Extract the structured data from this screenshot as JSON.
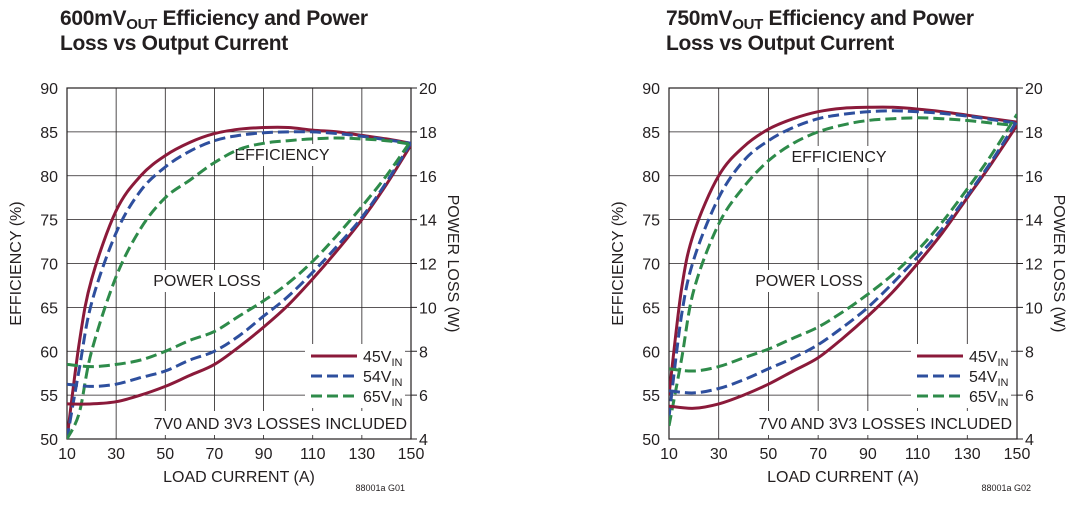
{
  "charts": [
    {
      "title_prefix": "600mV",
      "title_sub": "OUT",
      "title_suffix": " Efficiency and Power",
      "title_line2": "Loss vs Output Current",
      "figure_code": "88001a G01"
    },
    {
      "title_prefix": "750mV",
      "title_sub": "OUT",
      "title_suffix": " Efficiency and Power",
      "title_line2": "Loss vs Output Current",
      "figure_code": "88001a G02"
    }
  ],
  "colors": {
    "45V": "#8b1a3a",
    "54V": "#2e4f9e",
    "65V": "#2e8b4a",
    "axis": "#231f20"
  },
  "chart_data": [
    {
      "type": "line",
      "title": "600mVOUT Efficiency and Power Loss vs Output Current",
      "xlabel": "LOAD CURRENT (A)",
      "ylabel": "EFFICIENCY (%)",
      "y2label": "POWER LOSS (W)",
      "xlim": [
        10,
        150
      ],
      "ylim": [
        50,
        90
      ],
      "y2lim": [
        4,
        20
      ],
      "xticks": [
        10,
        30,
        50,
        70,
        90,
        110,
        130,
        150
      ],
      "yticks": [
        50,
        55,
        60,
        65,
        70,
        75,
        80,
        85,
        90
      ],
      "y2ticks": [
        4,
        6,
        8,
        10,
        12,
        14,
        16,
        18,
        20
      ],
      "grid": true,
      "legend": "bottom-right",
      "annotations": [
        "EFFICIENCY",
        "POWER LOSS",
        "7V0 AND 3V3 LOSSES INCLUDED"
      ],
      "series": [
        {
          "name": "45V",
          "sub": "IN",
          "axis": "efficiency",
          "style": "solid",
          "color_key": "45V",
          "x": [
            10,
            15,
            20,
            30,
            40,
            50,
            60,
            70,
            80,
            90,
            100,
            110,
            120,
            130,
            140,
            150
          ],
          "y": [
            50,
            61,
            68.2,
            76,
            80,
            82.3,
            83.8,
            84.8,
            85.3,
            85.5,
            85.5,
            85.2,
            85,
            84.6,
            84.2,
            83.7
          ]
        },
        {
          "name": "54V",
          "sub": "IN",
          "axis": "efficiency",
          "style": "dashed",
          "color_key": "54V",
          "x": [
            10,
            15,
            20,
            30,
            40,
            50,
            60,
            70,
            80,
            90,
            100,
            110,
            120,
            130,
            140,
            150
          ],
          "y": [
            50,
            58,
            65.5,
            73.5,
            78.3,
            81,
            82.8,
            84,
            84.6,
            84.9,
            85,
            85,
            84.8,
            84.5,
            84.1,
            83.7
          ]
        },
        {
          "name": "65V",
          "sub": "IN",
          "axis": "efficiency",
          "style": "dashed",
          "color_key": "65V",
          "x": [
            10,
            15,
            20,
            30,
            40,
            50,
            60,
            70,
            80,
            90,
            100,
            110,
            120,
            130,
            140,
            150
          ],
          "y": [
            50,
            53,
            60,
            68.5,
            74,
            77.5,
            79.5,
            81.5,
            83,
            83.7,
            84,
            84.2,
            84.3,
            84.2,
            84,
            83.6
          ]
        },
        {
          "name": "45V",
          "sub": "IN",
          "axis": "power_loss",
          "style": "solid",
          "color_key": "45V",
          "x": [
            10,
            20,
            30,
            40,
            50,
            60,
            70,
            80,
            90,
            100,
            110,
            120,
            130,
            140,
            150
          ],
          "y": [
            5.6,
            5.6,
            5.7,
            6.0,
            6.4,
            6.9,
            7.4,
            8.2,
            9.1,
            10.1,
            11.3,
            12.6,
            14.0,
            15.6,
            17.4
          ]
        },
        {
          "name": "54V",
          "sub": "IN",
          "axis": "power_loss",
          "style": "dashed",
          "color_key": "54V",
          "x": [
            10,
            20,
            30,
            40,
            50,
            60,
            70,
            80,
            90,
            100,
            110,
            120,
            130,
            140,
            150
          ],
          "y": [
            6.5,
            6.4,
            6.5,
            6.8,
            7.1,
            7.6,
            8.0,
            8.7,
            9.6,
            10.5,
            11.6,
            12.8,
            14.1,
            15.7,
            17.5
          ]
        },
        {
          "name": "65V",
          "sub": "IN",
          "axis": "power_loss",
          "style": "dashed",
          "color_key": "65V",
          "x": [
            10,
            20,
            30,
            40,
            50,
            60,
            70,
            80,
            90,
            100,
            110,
            120,
            130,
            140,
            150
          ],
          "y": [
            7.4,
            7.3,
            7.4,
            7.6,
            8.0,
            8.5,
            8.9,
            9.6,
            10.3,
            11.1,
            12.1,
            13.3,
            14.6,
            16.0,
            17.6
          ]
        }
      ]
    },
    {
      "type": "line",
      "title": "750mVOUT Efficiency and Power Loss vs Output Current",
      "xlabel": "LOAD CURRENT (A)",
      "ylabel": "EFFICIENCY (%)",
      "y2label": "POWER LOSS (W)",
      "xlim": [
        10,
        150
      ],
      "ylim": [
        50,
        90
      ],
      "y2lim": [
        4,
        20
      ],
      "xticks": [
        10,
        30,
        50,
        70,
        90,
        110,
        130,
        150
      ],
      "yticks": [
        50,
        55,
        60,
        65,
        70,
        75,
        80,
        85,
        90
      ],
      "y2ticks": [
        4,
        6,
        8,
        10,
        12,
        14,
        16,
        18,
        20
      ],
      "grid": true,
      "legend": "bottom-right",
      "annotations": [
        "EFFICIENCY",
        "POWER LOSS",
        "7V0 AND 3V3 LOSSES INCLUDED"
      ],
      "series": [
        {
          "name": "45V",
          "sub": "IN",
          "axis": "efficiency",
          "style": "solid",
          "color_key": "45V",
          "x": [
            10,
            15,
            20,
            30,
            40,
            50,
            60,
            70,
            80,
            90,
            100,
            110,
            120,
            130,
            140,
            150
          ],
          "y": [
            55,
            67,
            73.5,
            80,
            83.3,
            85.3,
            86.5,
            87.3,
            87.7,
            87.8,
            87.8,
            87.6,
            87.3,
            86.9,
            86.5,
            86.1
          ]
        },
        {
          "name": "54V",
          "sub": "IN",
          "axis": "efficiency",
          "style": "dashed",
          "color_key": "54V",
          "x": [
            10,
            15,
            20,
            30,
            40,
            50,
            60,
            70,
            80,
            90,
            100,
            110,
            120,
            130,
            140,
            150
          ],
          "y": [
            52.5,
            64,
            70.5,
            77.5,
            81.7,
            84,
            85.5,
            86.5,
            87,
            87.3,
            87.4,
            87.3,
            87.1,
            86.8,
            86.4,
            86.0
          ]
        },
        {
          "name": "65V",
          "sub": "IN",
          "axis": "efficiency",
          "style": "dashed",
          "color_key": "65V",
          "x": [
            10,
            15,
            20,
            30,
            40,
            50,
            60,
            70,
            80,
            90,
            100,
            110,
            120,
            130,
            140,
            150
          ],
          "y": [
            51.5,
            59,
            67,
            74.5,
            78.7,
            81.7,
            83.7,
            85,
            85.8,
            86.3,
            86.5,
            86.6,
            86.5,
            86.3,
            86,
            85.7
          ]
        },
        {
          "name": "45V",
          "sub": "IN",
          "axis": "power_loss",
          "style": "solid",
          "color_key": "45V",
          "x": [
            10,
            20,
            30,
            40,
            50,
            60,
            70,
            80,
            90,
            100,
            110,
            120,
            130,
            140,
            150
          ],
          "y": [
            5.5,
            5.4,
            5.6,
            6.0,
            6.5,
            7.1,
            7.7,
            8.6,
            9.6,
            10.7,
            12.0,
            13.4,
            15.0,
            16.6,
            18.3
          ]
        },
        {
          "name": "54V",
          "sub": "IN",
          "axis": "power_loss",
          "style": "dashed",
          "color_key": "54V",
          "x": [
            10,
            20,
            30,
            40,
            50,
            60,
            70,
            80,
            90,
            100,
            110,
            120,
            130,
            140,
            150
          ],
          "y": [
            6.2,
            6.1,
            6.3,
            6.7,
            7.2,
            7.7,
            8.3,
            9.1,
            10.0,
            11.1,
            12.3,
            13.6,
            15.1,
            16.7,
            18.5
          ]
        },
        {
          "name": "65V",
          "sub": "IN",
          "axis": "power_loss",
          "style": "dashed",
          "color_key": "65V",
          "x": [
            10,
            20,
            30,
            40,
            50,
            60,
            70,
            80,
            90,
            100,
            110,
            120,
            130,
            140,
            150
          ],
          "y": [
            7.2,
            7.1,
            7.3,
            7.7,
            8.1,
            8.6,
            9.1,
            9.8,
            10.6,
            11.5,
            12.6,
            13.9,
            15.4,
            17.0,
            18.8
          ]
        }
      ]
    }
  ]
}
